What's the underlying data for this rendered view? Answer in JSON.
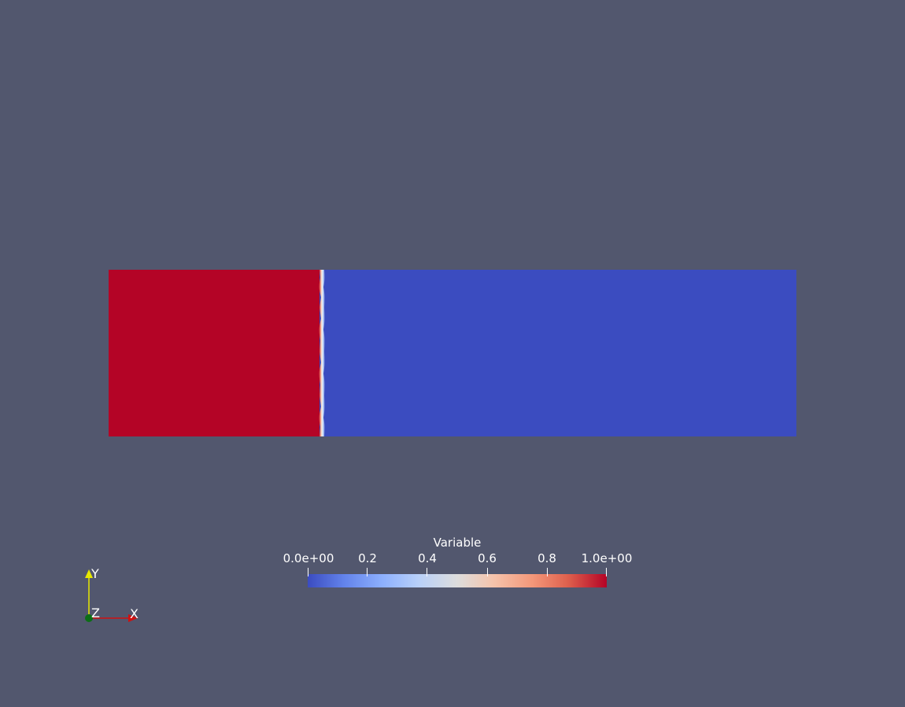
{
  "colorbar": {
    "title": "Variable",
    "min_label": "0.0e+00",
    "max_label": "1.0e+00",
    "ticks": [
      "0.0e+00",
      "0.2",
      "0.4",
      "0.6",
      "0.8",
      "1.0e+00"
    ],
    "colormap": "cool-to-warm",
    "low_color": "#3b4cc0",
    "high_color": "#b40426"
  },
  "field": {
    "left_value": 1.0,
    "right_value": 0.0,
    "left_color": "#b40426",
    "right_color": "#3b4cc0",
    "background_color": "#52576e"
  },
  "axes": {
    "x_label": "X",
    "y_label": "Y",
    "z_label": "Z"
  }
}
